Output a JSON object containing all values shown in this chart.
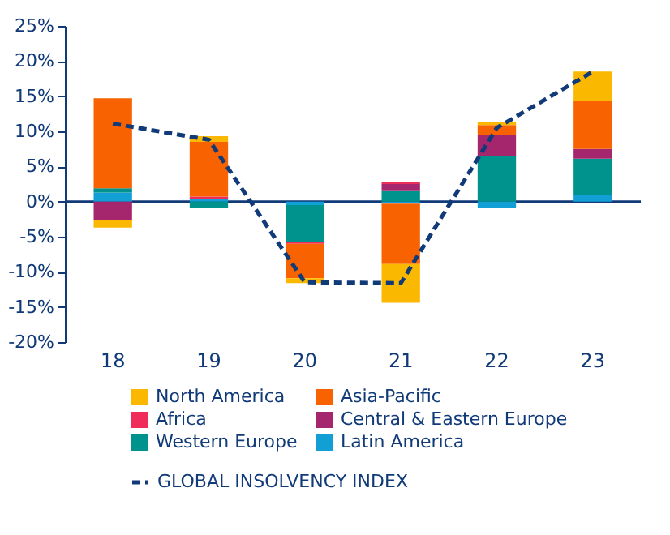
{
  "chart_data": {
    "type": "bar",
    "stacked": true,
    "categories": [
      "18",
      "19",
      "20",
      "21",
      "22",
      "23"
    ],
    "series": [
      {
        "name": "Latin America",
        "color": "#129fd6",
        "values": [
          1.3,
          0.4,
          -0.5,
          -0.3,
          -0.9,
          0.9
        ]
      },
      {
        "name": "Western Europe",
        "color": "#00928d",
        "values": [
          0.6,
          -0.9,
          -5.2,
          1.5,
          6.5,
          5.2
        ]
      },
      {
        "name": "Central & Eastern Europe",
        "color": "#a6266e",
        "values": [
          -2.7,
          null,
          null,
          1.0,
          3.0,
          1.4
        ]
      },
      {
        "name": "Africa",
        "color": "#ef2c5a",
        "values": [
          null,
          0.3,
          -0.3,
          0.3,
          null,
          null
        ]
      },
      {
        "name": "Asia-Pacific",
        "color": "#f86200",
        "values": [
          12.8,
          7.8,
          -4.9,
          -8.6,
          1.4,
          6.8
        ]
      },
      {
        "name": "North America",
        "color": "#fbb800",
        "values": [
          -1.0,
          0.8,
          -0.7,
          -5.5,
          0.4,
          4.2
        ]
      },
      {
        "name": "GLOBAL INSOLVENCY INDEX",
        "type": "line",
        "line_style": "dashed",
        "color": "#113a78",
        "values": [
          11.1,
          8.8,
          -11.5,
          -11.6,
          10.5,
          18.5
        ]
      }
    ],
    "ylim": [
      -20,
      25
    ],
    "yticks": [
      {
        "value": -20,
        "label": "-20%"
      },
      {
        "value": -15,
        "label": "-15%"
      },
      {
        "value": -10,
        "label": "-10%"
      },
      {
        "value": -5,
        "label": "-5%"
      },
      {
        "value": 0,
        "label": "0%"
      },
      {
        "value": 5,
        "label": "5%"
      },
      {
        "value": 10,
        "label": "10%"
      },
      {
        "value": 15,
        "label": "15%"
      },
      {
        "value": 20,
        "label": "20%"
      },
      {
        "value": 25,
        "label": "25%"
      }
    ],
    "ref_lines": [
      {
        "axis": "y",
        "value": 0,
        "color": "#113a78"
      }
    ],
    "legend": "bottom",
    "grid": false
  }
}
